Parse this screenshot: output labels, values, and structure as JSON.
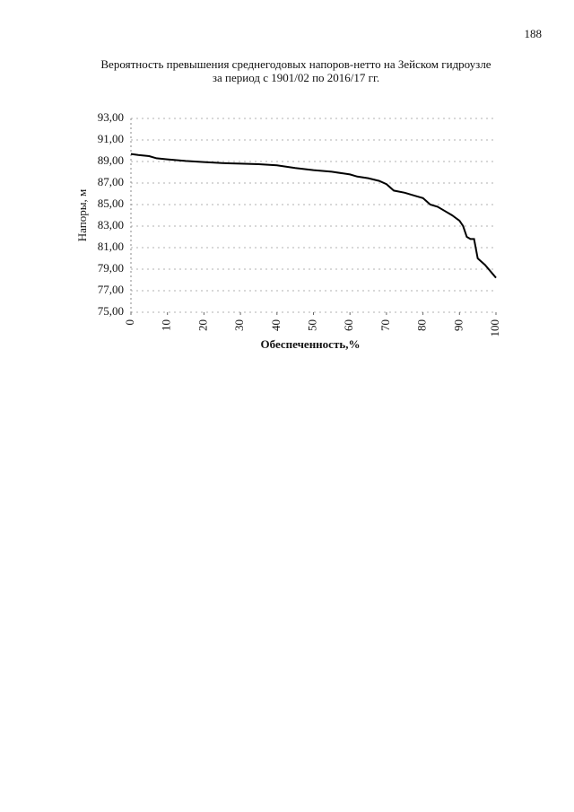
{
  "page_number": "188",
  "chart_data": {
    "type": "line",
    "title": "Вероятность превышения среднегодовых напоров-нетто на Зейском гидроузле",
    "subtitle": "за период с 1901/02 по 2016/17 гг.",
    "x_label": "Обеспеченность,%",
    "y_label": "Напоры, м",
    "x": [
      0,
      2,
      5,
      7,
      10,
      15,
      20,
      25,
      30,
      35,
      40,
      45,
      50,
      55,
      60,
      62,
      65,
      68,
      70,
      72,
      75,
      78,
      80,
      82,
      84,
      86,
      88,
      90,
      91,
      92,
      93,
      94,
      95,
      97,
      98,
      99,
      100
    ],
    "series": [
      {
        "name": "Напоры",
        "color": "#000000",
        "values": [
          89.7,
          89.6,
          89.5,
          89.3,
          89.2,
          89.05,
          88.95,
          88.85,
          88.8,
          88.75,
          88.65,
          88.4,
          88.2,
          88.05,
          87.8,
          87.6,
          87.45,
          87.2,
          86.9,
          86.3,
          86.1,
          85.8,
          85.6,
          85.0,
          84.8,
          84.4,
          84.0,
          83.5,
          83.0,
          82.0,
          81.8,
          81.8,
          80.0,
          79.4,
          79.0,
          78.6,
          78.2
        ]
      }
    ],
    "xlim": [
      0,
      100
    ],
    "xticks": [
      0,
      10,
      20,
      30,
      40,
      50,
      60,
      70,
      80,
      90,
      100
    ],
    "ylim": [
      75,
      93
    ],
    "yticks": [
      {
        "value": 75,
        "label": "75,00"
      },
      {
        "value": 77,
        "label": "77,00"
      },
      {
        "value": 79,
        "label": "79,00"
      },
      {
        "value": 81,
        "label": "81,00"
      },
      {
        "value": 83,
        "label": "83,00"
      },
      {
        "value": 85,
        "label": "85,00"
      },
      {
        "value": 87,
        "label": "87,00"
      },
      {
        "value": 89,
        "label": "89,00"
      },
      {
        "value": 91,
        "label": "91,00"
      },
      {
        "value": 93,
        "label": "93,00"
      }
    ],
    "grid": true
  }
}
